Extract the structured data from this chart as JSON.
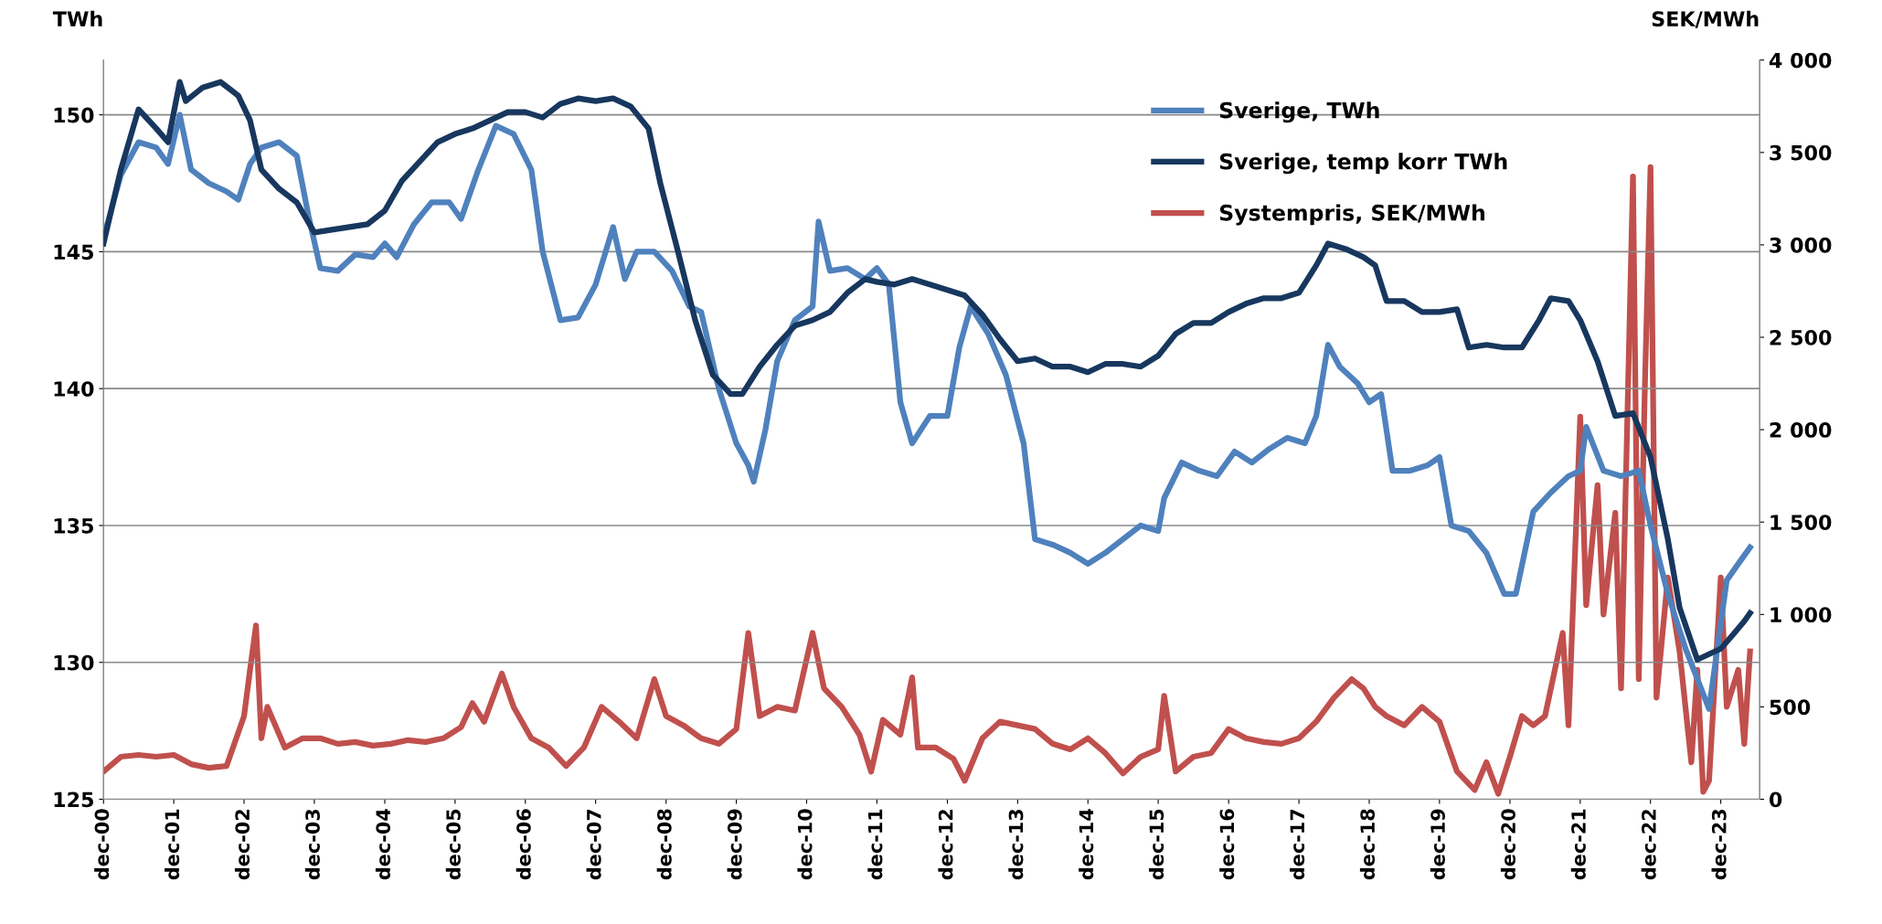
{
  "chart_data": {
    "type": "line",
    "ylabel": "TWh",
    "y2label": "SEK/MWh",
    "legend": "top right",
    "grid": "y",
    "line_style": "solid",
    "marker": "none",
    "xlim": [
      "2000-12",
      "2024-06-20"
    ],
    "xticks": [
      {
        "value": "2000-12",
        "label": "dec-00"
      },
      {
        "value": "2001-12",
        "label": "dec-01"
      },
      {
        "value": "2002-12",
        "label": "dec-02"
      },
      {
        "value": "2003-12",
        "label": "dec-03"
      },
      {
        "value": "2004-12",
        "label": "dec-04"
      },
      {
        "value": "2005-12",
        "label": "dec-05"
      },
      {
        "value": "2006-12",
        "label": "dec-06"
      },
      {
        "value": "2007-12",
        "label": "dec-07"
      },
      {
        "value": "2008-12",
        "label": "dec-08"
      },
      {
        "value": "2009-12",
        "label": "dec-09"
      },
      {
        "value": "2010-12",
        "label": "dec-10"
      },
      {
        "value": "2011-12",
        "label": "dec-11"
      },
      {
        "value": "2012-12",
        "label": "dec-12"
      },
      {
        "value": "2013-12",
        "label": "dec-13"
      },
      {
        "value": "2014-12",
        "label": "dec-14"
      },
      {
        "value": "2015-12",
        "label": "dec-15"
      },
      {
        "value": "2016-12",
        "label": "dec-16"
      },
      {
        "value": "2017-12",
        "label": "dec-17"
      },
      {
        "value": "2018-12",
        "label": "dec-18"
      },
      {
        "value": "2019-12",
        "label": "dec-19"
      },
      {
        "value": "2020-12",
        "label": "dec-20"
      },
      {
        "value": "2021-12",
        "label": "dec-21"
      },
      {
        "value": "2022-12",
        "label": "dec-22"
      },
      {
        "value": "2023-12",
        "label": "dec-23"
      }
    ],
    "ylim": [
      125,
      152
    ],
    "yticks": [
      125,
      130,
      135,
      140,
      145,
      150
    ],
    "y2lim": [
      0,
      4000
    ],
    "y2ticks": [
      0,
      500,
      {
        "value": 1000,
        "label": "1 000"
      },
      {
        "value": 1500,
        "label": "1 500"
      },
      {
        "value": 2000,
        "label": "2 000"
      },
      {
        "value": 2500,
        "label": "2 500"
      },
      {
        "value": 3000,
        "label": "3 000"
      },
      {
        "value": 3500,
        "label": "3 500"
      },
      {
        "value": 4000,
        "label": "4 000"
      }
    ],
    "series": [
      {
        "name": "Sverige, TWh",
        "color": "#4f81bd",
        "x": [
          "2000-12",
          "2001-03",
          "2001-06",
          "2001-09",
          "2001-11",
          "2002-01",
          "2002-03",
          "2002-06",
          "2002-09",
          "2002-11",
          "2003-01",
          "2003-03",
          "2003-06",
          "2003-09",
          "2003-11",
          "2004-01",
          "2004-04",
          "2004-07",
          "2004-10",
          "2004-12",
          "2005-02",
          "2005-05",
          "2005-08",
          "2005-11",
          "2006-01",
          "2006-04",
          "2006-07",
          "2006-10",
          "2007-01",
          "2007-03",
          "2007-06",
          "2007-09",
          "2007-12",
          "2008-03",
          "2008-05",
          "2008-07",
          "2008-10",
          "2009-01",
          "2009-04",
          "2009-06",
          "2009-09",
          "2009-12",
          "2010-02",
          "2010-03",
          "2010-05",
          "2010-07",
          "2010-10",
          "2011-01",
          "2011-02",
          "2011-04",
          "2011-07",
          "2011-10",
          "2011-12",
          "2012-02",
          "2012-04",
          "2012-06",
          "2012-09",
          "2012-12",
          "2013-02",
          "2013-04",
          "2013-07",
          "2013-10",
          "2014-01",
          "2014-03",
          "2014-06",
          "2014-09",
          "2014-12",
          "2015-03",
          "2015-06",
          "2015-09",
          "2015-12",
          "2016-01",
          "2016-04",
          "2016-07",
          "2016-10",
          "2017-01",
          "2017-04",
          "2017-07",
          "2017-10",
          "2018-01",
          "2018-03",
          "2018-05",
          "2018-07",
          "2018-10",
          "2018-12",
          "2019-02",
          "2019-04",
          "2019-07",
          "2019-10",
          "2019-12",
          "2020-02",
          "2020-05",
          "2020-08",
          "2020-11",
          "2021-01",
          "2021-04",
          "2021-07",
          "2021-10",
          "2021-12",
          "2022-01",
          "2022-04",
          "2022-07",
          "2022-10",
          "2022-12",
          "2023-03",
          "2023-06",
          "2023-10",
          "2024-01",
          "2024-03",
          "2024-05"
        ],
        "values": [
          145.5,
          147.8,
          149.0,
          148.8,
          148.2,
          150.0,
          148.0,
          147.5,
          147.2,
          146.9,
          148.2,
          148.8,
          149.0,
          148.5,
          146.3,
          144.4,
          144.3,
          144.9,
          144.8,
          145.3,
          144.8,
          146.0,
          146.8,
          146.8,
          146.2,
          148.0,
          149.6,
          149.3,
          148.0,
          145.0,
          142.5,
          142.6,
          143.8,
          145.9,
          144.0,
          145.0,
          145.0,
          144.3,
          143.0,
          142.8,
          140.0,
          138.0,
          137.2,
          136.6,
          138.5,
          141.0,
          142.5,
          143.0,
          146.1,
          144.3,
          144.4,
          144.0,
          144.4,
          143.8,
          139.5,
          138.0,
          139.0,
          139.0,
          141.5,
          143.0,
          142.0,
          140.5,
          138.0,
          134.5,
          134.3,
          134.0,
          133.6,
          134.0,
          134.5,
          135.0,
          134.8,
          136.0,
          137.3,
          137.0,
          136.8,
          137.7,
          137.3,
          137.8,
          138.2,
          138.0,
          139.0,
          141.6,
          140.8,
          140.2,
          139.5,
          139.8,
          137.0,
          137.0,
          137.2,
          137.5,
          135.0,
          134.8,
          134.0,
          132.5,
          132.5,
          135.5,
          136.2,
          136.8,
          137.0,
          138.6,
          137.0,
          136.8,
          137.0,
          135.0,
          132.5,
          130.5,
          128.3,
          133.0,
          133.6,
          134.2
        ]
      },
      {
        "name": "Sverige, temp korr TWh",
        "color": "#17375e",
        "x": [
          "2000-12",
          "2001-03",
          "2001-06",
          "2001-09",
          "2001-11",
          "2002-01",
          "2002-02",
          "2002-05",
          "2002-08",
          "2002-11",
          "2003-01",
          "2003-03",
          "2003-06",
          "2003-09",
          "2003-12",
          "2004-03",
          "2004-06",
          "2004-09",
          "2004-12",
          "2005-03",
          "2005-06",
          "2005-09",
          "2005-12",
          "2006-03",
          "2006-06",
          "2006-09",
          "2006-12",
          "2007-03",
          "2007-06",
          "2007-09",
          "2007-12",
          "2008-03",
          "2008-06",
          "2008-09",
          "2008-11",
          "2009-02",
          "2009-05",
          "2009-08",
          "2009-11",
          "2010-01",
          "2010-04",
          "2010-07",
          "2010-10",
          "2011-01",
          "2011-04",
          "2011-07",
          "2011-10",
          "2011-12",
          "2012-03",
          "2012-06",
          "2012-09",
          "2012-12",
          "2013-03",
          "2013-06",
          "2013-09",
          "2013-12",
          "2014-03",
          "2014-06",
          "2014-09",
          "2014-12",
          "2015-03",
          "2015-06",
          "2015-09",
          "2015-12",
          "2016-03",
          "2016-06",
          "2016-09",
          "2016-12",
          "2017-03",
          "2017-06",
          "2017-09",
          "2017-12",
          "2018-03",
          "2018-05",
          "2018-08",
          "2018-11",
          "2019-01",
          "2019-03",
          "2019-06",
          "2019-09",
          "2019-12",
          "2020-03",
          "2020-05",
          "2020-08",
          "2020-11",
          "2021-02",
          "2021-05",
          "2021-07",
          "2021-10",
          "2021-12",
          "2022-03",
          "2022-06",
          "2022-09",
          "2022-12",
          "2023-03",
          "2023-05",
          "2023-08",
          "2023-12",
          "2024-02",
          "2024-04",
          "2024-05"
        ],
        "values": [
          145.3,
          148.0,
          150.2,
          149.5,
          149.0,
          151.2,
          150.5,
          151.0,
          151.2,
          150.7,
          149.8,
          148.0,
          147.3,
          146.8,
          145.7,
          145.8,
          145.9,
          146.0,
          146.5,
          147.6,
          148.3,
          149.0,
          149.3,
          149.5,
          149.8,
          150.1,
          150.1,
          149.9,
          150.4,
          150.6,
          150.5,
          150.6,
          150.3,
          149.5,
          147.5,
          145.0,
          142.5,
          140.5,
          139.8,
          139.8,
          140.8,
          141.6,
          142.3,
          142.5,
          142.8,
          143.5,
          144.0,
          143.9,
          143.8,
          144.0,
          143.8,
          143.6,
          143.4,
          142.7,
          141.8,
          141.0,
          141.1,
          140.8,
          140.8,
          140.6,
          140.9,
          140.9,
          140.8,
          141.2,
          142.0,
          142.4,
          142.4,
          142.8,
          143.1,
          143.3,
          143.3,
          143.5,
          144.5,
          145.3,
          145.1,
          144.8,
          144.5,
          143.2,
          143.2,
          142.8,
          142.8,
          142.9,
          141.5,
          141.6,
          141.5,
          141.5,
          142.5,
          143.3,
          143.2,
          142.5,
          141.0,
          139.0,
          139.1,
          137.5,
          134.5,
          132.0,
          130.1,
          130.5,
          131.0,
          131.5,
          131.8
        ]
      },
      {
        "name": "Systempris, SEK/MWh",
        "color": "#c0504d",
        "axis": "y2",
        "x": [
          "2000-12",
          "2001-03",
          "2001-06",
          "2001-09",
          "2001-12",
          "2002-03",
          "2002-06",
          "2002-09",
          "2002-12",
          "2003-01",
          "2003-02",
          "2003-03",
          "2003-04",
          "2003-07",
          "2003-10",
          "2004-01",
          "2004-04",
          "2004-07",
          "2004-10",
          "2005-01",
          "2005-04",
          "2005-07",
          "2005-10",
          "2006-01",
          "2006-03",
          "2006-05",
          "2006-08",
          "2006-10",
          "2007-01",
          "2007-04",
          "2007-07",
          "2007-10",
          "2008-01",
          "2008-04",
          "2008-07",
          "2008-10",
          "2008-12",
          "2009-03",
          "2009-06",
          "2009-09",
          "2009-12",
          "2010-02",
          "2010-04",
          "2010-07",
          "2010-10",
          "2011-01",
          "2011-03",
          "2011-06",
          "2011-09",
          "2011-11",
          "2012-01",
          "2012-04",
          "2012-06",
          "2012-07",
          "2012-10",
          "2013-01",
          "2013-03",
          "2013-06",
          "2013-09",
          "2013-12",
          "2014-03",
          "2014-06",
          "2014-09",
          "2014-12",
          "2015-03",
          "2015-06",
          "2015-09",
          "2015-12",
          "2016-01",
          "2016-03",
          "2016-06",
          "2016-09",
          "2016-12",
          "2017-03",
          "2017-06",
          "2017-09",
          "2017-12",
          "2018-03",
          "2018-06",
          "2018-09",
          "2018-11",
          "2019-01",
          "2019-03",
          "2019-06",
          "2019-09",
          "2019-12",
          "2020-03",
          "2020-06",
          "2020-08",
          "2020-10",
          "2020-12",
          "2021-02",
          "2021-04",
          "2021-06",
          "2021-09",
          "2021-10",
          "2021-12",
          "2022-01",
          "2022-03",
          "2022-04",
          "2022-06",
          "2022-07",
          "2022-09",
          "2022-10",
          "2022-11",
          "2022-12",
          "2023-01",
          "2023-03",
          "2023-05",
          "2023-07",
          "2023-08",
          "2023-09",
          "2023-10",
          "2023-12",
          "2024-01",
          "2024-03",
          "2024-04",
          "2024-05"
        ],
        "values": [
          150,
          230,
          240,
          230,
          240,
          190,
          170,
          180,
          450,
          700,
          940,
          330,
          500,
          280,
          330,
          330,
          300,
          310,
          290,
          300,
          320,
          310,
          330,
          390,
          520,
          420,
          680,
          500,
          330,
          280,
          180,
          280,
          500,
          420,
          330,
          650,
          450,
          400,
          330,
          300,
          380,
          900,
          450,
          500,
          480,
          900,
          600,
          500,
          350,
          150,
          430,
          350,
          660,
          280,
          280,
          220,
          100,
          330,
          420,
          400,
          380,
          300,
          270,
          330,
          250,
          140,
          230,
          270,
          560,
          150,
          230,
          250,
          380,
          330,
          310,
          300,
          330,
          420,
          550,
          650,
          600,
          500,
          450,
          400,
          500,
          420,
          150,
          50,
          200,
          30,
          230,
          450,
          400,
          450,
          900,
          400,
          2070,
          1050,
          1700,
          1000,
          1550,
          600,
          3370,
          650,
          2200,
          3420,
          550,
          1200,
          800,
          200,
          700,
          40,
          100,
          1200,
          500,
          700,
          300,
          800
        ]
      }
    ]
  }
}
